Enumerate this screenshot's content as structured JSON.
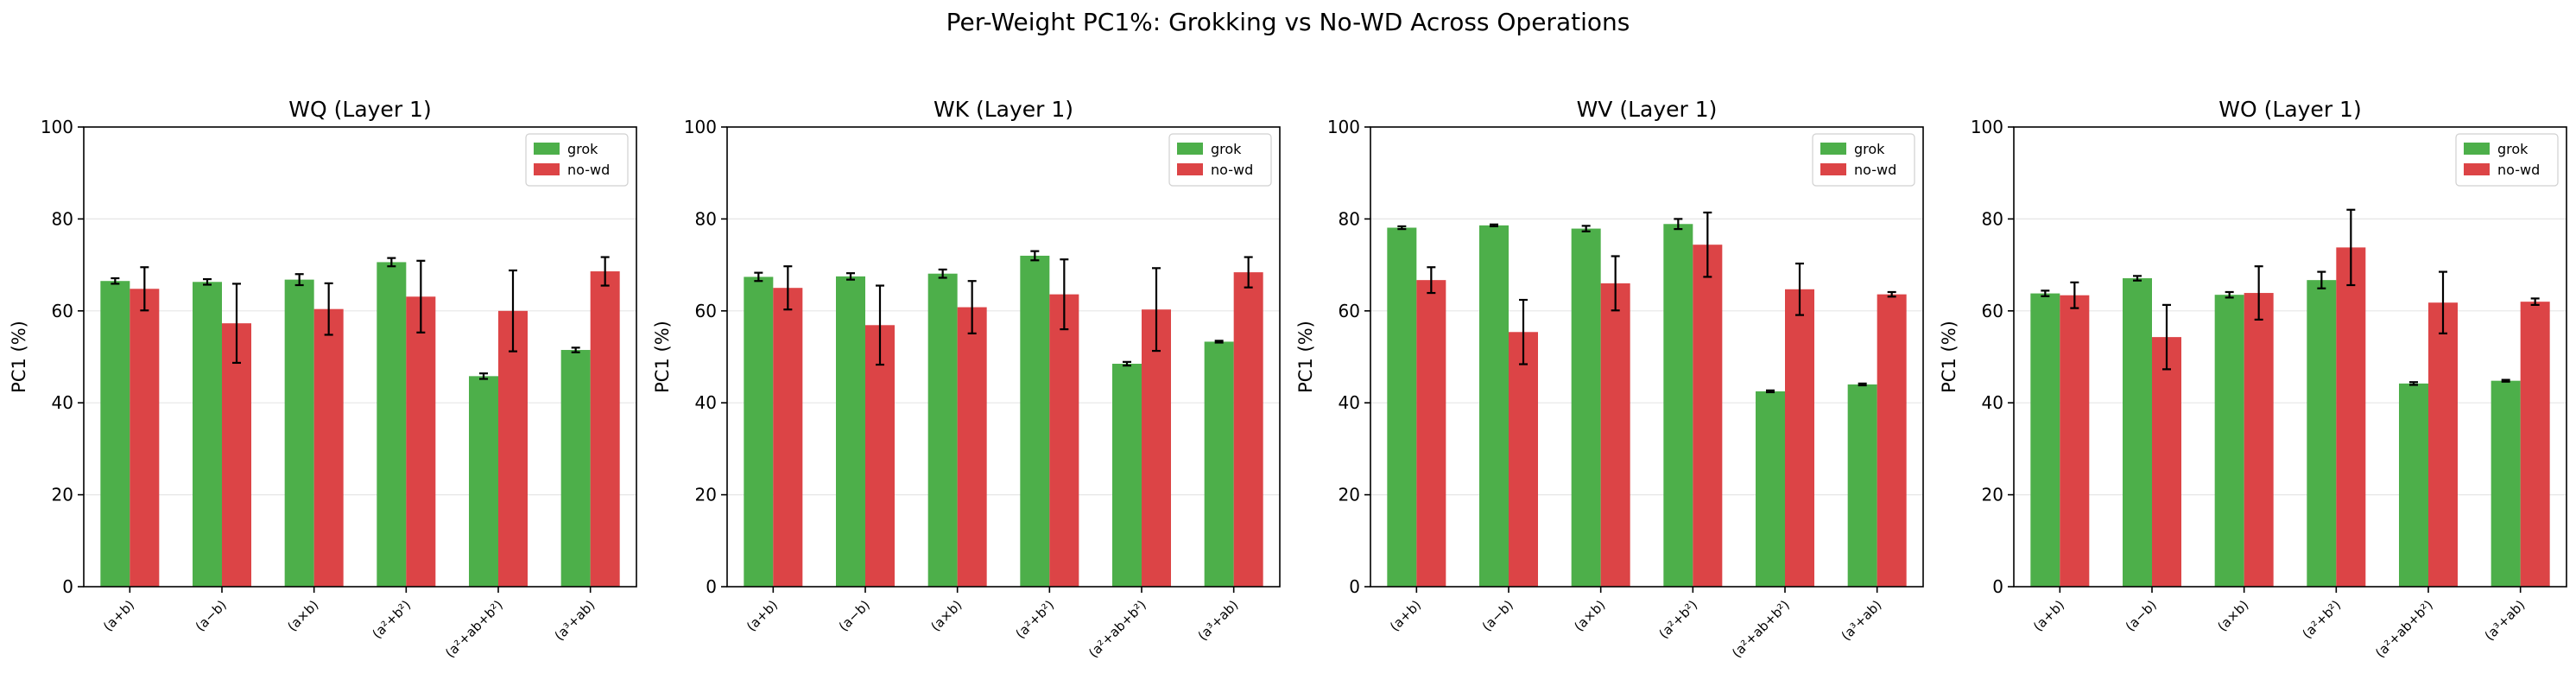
{
  "suptitle": "Per-Weight PC1%: Grokking vs No-WD Across Operations",
  "colors": {
    "grok": "#4daf4a",
    "nowd": "#dc4446",
    "grid": "#e6e6e6",
    "axis": "#000000",
    "errorbar": "#000000"
  },
  "chart_data": [
    {
      "type": "bar",
      "title": "WQ (Layer 1)",
      "xlabel": "",
      "ylabel": "PC1 (%)",
      "ylim": [
        0,
        100
      ],
      "yticks": [
        0,
        20,
        40,
        60,
        80,
        100
      ],
      "grid": "y",
      "legend_position": "top-right",
      "categories": [
        "(a+b)",
        "(a−b)",
        "(a×b)",
        "(a²+b²)",
        "(a²+ab+b²)",
        "(a³+ab)"
      ],
      "series": [
        {
          "name": "grok",
          "values": [
            66.5,
            66.3,
            66.8,
            70.6,
            45.8,
            51.5
          ],
          "errors": [
            0.6,
            0.6,
            1.2,
            0.9,
            0.6,
            0.5
          ]
        },
        {
          "name": "no-wd",
          "values": [
            64.8,
            57.3,
            60.4,
            63.1,
            60.0,
            68.6
          ],
          "errors": [
            4.7,
            8.6,
            5.6,
            7.8,
            8.8,
            3.1
          ]
        }
      ]
    },
    {
      "type": "bar",
      "title": "WK (Layer 1)",
      "xlabel": "",
      "ylabel": "PC1 (%)",
      "ylim": [
        0,
        100
      ],
      "yticks": [
        0,
        20,
        40,
        60,
        80,
        100
      ],
      "grid": "y",
      "legend_position": "top-right",
      "categories": [
        "(a+b)",
        "(a−b)",
        "(a×b)",
        "(a²+b²)",
        "(a²+ab+b²)",
        "(a³+ab)"
      ],
      "series": [
        {
          "name": "grok",
          "values": [
            67.4,
            67.5,
            68.1,
            72.0,
            48.5,
            53.3
          ],
          "errors": [
            0.9,
            0.7,
            0.9,
            1.0,
            0.4,
            0.2
          ]
        },
        {
          "name": "no-wd",
          "values": [
            65.0,
            56.9,
            60.8,
            63.6,
            60.3,
            68.4
          ],
          "errors": [
            4.7,
            8.6,
            5.7,
            7.6,
            9.0,
            3.3
          ]
        }
      ]
    },
    {
      "type": "bar",
      "title": "WV (Layer 1)",
      "xlabel": "",
      "ylabel": "PC1 (%)",
      "ylim": [
        0,
        100
      ],
      "yticks": [
        0,
        20,
        40,
        60,
        80,
        100
      ],
      "grid": "y",
      "legend_position": "top-right",
      "categories": [
        "(a+b)",
        "(a−b)",
        "(a×b)",
        "(a²+b²)",
        "(a²+ab+b²)",
        "(a³+ab)"
      ],
      "series": [
        {
          "name": "grok",
          "values": [
            78.1,
            78.6,
            77.9,
            78.9,
            42.5,
            44.0
          ],
          "errors": [
            0.3,
            0.2,
            0.6,
            1.1,
            0.2,
            0.2
          ]
        },
        {
          "name": "no-wd",
          "values": [
            66.7,
            55.4,
            66.0,
            74.4,
            64.7,
            63.6
          ],
          "errors": [
            2.8,
            7.0,
            5.9,
            7.0,
            5.6,
            0.5
          ]
        }
      ]
    },
    {
      "type": "bar",
      "title": "WO (Layer 1)",
      "xlabel": "",
      "ylabel": "PC1 (%)",
      "ylim": [
        0,
        100
      ],
      "yticks": [
        0,
        20,
        40,
        60,
        80,
        100
      ],
      "grid": "y",
      "legend_position": "top-right",
      "categories": [
        "(a+b)",
        "(a−b)",
        "(a×b)",
        "(a²+b²)",
        "(a²+ab+b²)",
        "(a³+ab)"
      ],
      "series": [
        {
          "name": "grok",
          "values": [
            63.8,
            67.1,
            63.5,
            66.7,
            44.2,
            44.8
          ],
          "errors": [
            0.6,
            0.5,
            0.6,
            1.8,
            0.3,
            0.2
          ]
        },
        {
          "name": "no-wd",
          "values": [
            63.4,
            54.3,
            63.9,
            73.8,
            61.8,
            62.0
          ],
          "errors": [
            2.8,
            7.0,
            5.8,
            8.2,
            6.7,
            0.7
          ]
        }
      ]
    }
  ]
}
